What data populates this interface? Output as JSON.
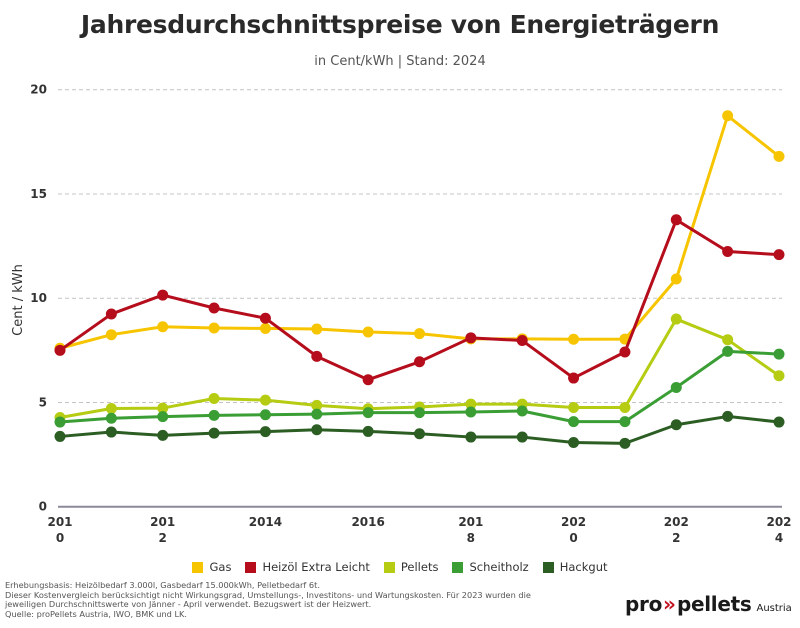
{
  "header": {
    "title": "Jahresdurchschnittspreise von Energieträgern",
    "subtitle": "in Cent/kWh | Stand: 2024"
  },
  "chart_data": {
    "type": "line",
    "title": "Jahresdurchschnittspreise von Energieträgern",
    "subtitle": "in Cent/kWh | Stand: 2024",
    "xlabel": "",
    "ylabel": "Cent / kWh",
    "ylim": [
      0,
      20
    ],
    "yticks": [
      0,
      5,
      10,
      15,
      20
    ],
    "grid": true,
    "legend_position": "bottom",
    "x": [
      2010,
      2011,
      2012,
      2013,
      2014,
      2015,
      2016,
      2017,
      2018,
      2019,
      2020,
      2021,
      2022,
      2023,
      2024
    ],
    "xtick_labels": [
      {
        "year": 2010,
        "lines": [
          "201",
          "0"
        ]
      },
      {
        "year": 2012,
        "lines": [
          "201",
          "2"
        ]
      },
      {
        "year": 2014,
        "lines": [
          "2014"
        ]
      },
      {
        "year": 2016,
        "lines": [
          "2016"
        ]
      },
      {
        "year": 2018,
        "lines": [
          "201",
          "8"
        ]
      },
      {
        "year": 2020,
        "lines": [
          "202",
          "0"
        ]
      },
      {
        "year": 2022,
        "lines": [
          "202",
          "2"
        ]
      },
      {
        "year": 2024,
        "lines": [
          "202",
          "4"
        ]
      }
    ],
    "series": [
      {
        "name": "Gas",
        "color": "#f7c500",
        "values": [
          7.6,
          8.25,
          8.63,
          8.57,
          8.55,
          8.52,
          8.38,
          8.3,
          8.05,
          8.05,
          8.03,
          8.04,
          10.92,
          18.75,
          16.8
        ]
      },
      {
        "name": "Heizöl Extra Leicht",
        "color": "#b50d1c",
        "values": [
          7.5,
          9.24,
          10.15,
          9.53,
          9.04,
          7.21,
          6.09,
          6.95,
          8.1,
          7.97,
          6.17,
          7.42,
          13.76,
          12.24,
          12.09
        ]
      },
      {
        "name": "Pellets",
        "color": "#b5cc12",
        "values": [
          4.28,
          4.71,
          4.73,
          5.19,
          5.11,
          4.86,
          4.7,
          4.78,
          4.92,
          4.92,
          4.76,
          4.76,
          9.0,
          8.01,
          6.28
        ]
      },
      {
        "name": "Scheitholz",
        "color": "#3a9e35",
        "values": [
          4.06,
          4.24,
          4.32,
          4.38,
          4.41,
          4.44,
          4.51,
          4.51,
          4.54,
          4.59,
          4.08,
          4.08,
          5.72,
          7.45,
          7.32
        ]
      },
      {
        "name": "Hackgut",
        "color": "#2c5e24",
        "values": [
          3.37,
          3.58,
          3.42,
          3.53,
          3.6,
          3.69,
          3.61,
          3.5,
          3.34,
          3.34,
          3.08,
          3.04,
          3.93,
          4.33,
          4.06
        ]
      }
    ]
  },
  "legend": [
    {
      "label": "Gas",
      "color": "#f7c500"
    },
    {
      "label": "Heizöl Extra Leicht",
      "color": "#b50d1c"
    },
    {
      "label": "Pellets",
      "color": "#b5cc12"
    },
    {
      "label": "Scheitholz",
      "color": "#3a9e35"
    },
    {
      "label": "Hackgut",
      "color": "#2c5e24"
    }
  ],
  "footnote": {
    "line1": "Erhebungsbasis: Heizölbedarf 3.000l, Gasbedarf 15.000kWh, Pelletbedarf 6t.",
    "line2": "Dieser Kostenvergleich berücksichtigt nicht Wirkungsgrad, Umstellungs-, Investitons- und Wartungskosten. Für 2023 wurden die",
    "line3": "jeweiligen Durchschnittswerte von Jänner - April verwendet. Bezugswert ist der Heizwert.",
    "line4": "Quelle: proPellets Austria, IWO, BMK und LK."
  },
  "logo": {
    "pro": "pro",
    "arrows": "»",
    "pellets": "pellets",
    "austria": "Austria"
  }
}
